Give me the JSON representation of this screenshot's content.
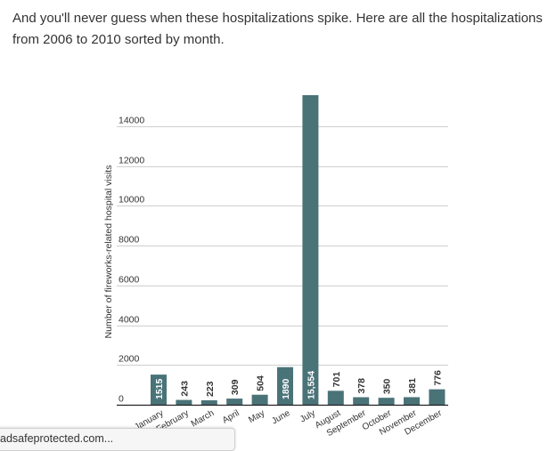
{
  "intro_text": "And you'll never guess when these hospitalizations spike. Here are all the hospitalizations from 2006 to 2010 sorted by month.",
  "status_bar": {
    "url_text": "adsafeprotected.com..."
  },
  "colors": {
    "bar": "#4a7378",
    "bar_label": "#ffffff",
    "outside_label": "#333333",
    "grid": "#cfcfcf",
    "baseline": "#222222",
    "text": "#333333"
  },
  "chart_data": {
    "type": "bar",
    "title": "",
    "xlabel": "",
    "ylabel": "Number of fireworks-related hospital visits",
    "ylim": [
      0,
      15554
    ],
    "yticks": [
      0,
      2000,
      4000,
      6000,
      8000,
      10000,
      12000,
      14000
    ],
    "ytick_labels": [
      "0",
      "2000",
      "4000",
      "6000",
      "8000",
      "10000",
      "12000",
      "14000"
    ],
    "grid": true,
    "categories": [
      "January",
      "February",
      "March",
      "April",
      "May",
      "June",
      "July",
      "August",
      "September",
      "October",
      "November",
      "December"
    ],
    "values": [
      1515,
      243,
      223,
      309,
      504,
      1890,
      15554,
      701,
      378,
      350,
      381,
      776
    ],
    "value_labels": [
      "1515",
      "243",
      "223",
      "309",
      "504",
      "1890",
      "15,554",
      "701",
      "378",
      "350",
      "381",
      "776"
    ]
  }
}
